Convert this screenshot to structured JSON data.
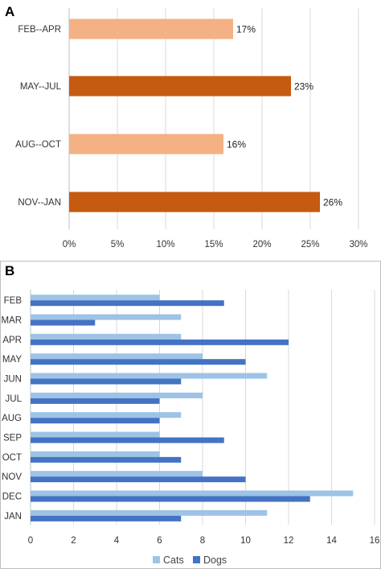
{
  "chart_data": [
    {
      "panel": "A",
      "type": "bar",
      "orientation": "horizontal",
      "categories": [
        "FEB--APR",
        "MAY--JUL",
        "AUG--OCT",
        "NOV--JAN"
      ],
      "values": [
        17,
        23,
        16,
        26
      ],
      "value_labels": [
        "17%",
        "23%",
        "16%",
        "26%"
      ],
      "xlim": [
        0,
        30
      ],
      "x_ticks": [
        "0%",
        "5%",
        "10%",
        "15%",
        "20%",
        "25%",
        "30%"
      ],
      "grid": "vertical",
      "colors": [
        "#F4B183",
        "#C55A11",
        "#F4B183",
        "#C55A11"
      ]
    },
    {
      "panel": "B",
      "type": "bar",
      "orientation": "horizontal",
      "categories": [
        "FEB",
        "MAR",
        "APR",
        "MAY",
        "JUN",
        "JUL",
        "AUG",
        "SEP",
        "OCT",
        "NOV",
        "DEC",
        "JAN"
      ],
      "series": [
        {
          "name": "Cats",
          "color": "#9DC3E6",
          "values": [
            6,
            7,
            7,
            8,
            11,
            8,
            7,
            6,
            6,
            8,
            15,
            11
          ]
        },
        {
          "name": "Dogs",
          "color": "#4472C4",
          "values": [
            9,
            3,
            12,
            10,
            7,
            6,
            6,
            9,
            7,
            10,
            13,
            7
          ]
        }
      ],
      "xlim": [
        0,
        16
      ],
      "x_ticks": [
        "0",
        "2",
        "4",
        "6",
        "8",
        "10",
        "12",
        "14",
        "16"
      ],
      "grid": "vertical",
      "legend": "bottom"
    }
  ]
}
